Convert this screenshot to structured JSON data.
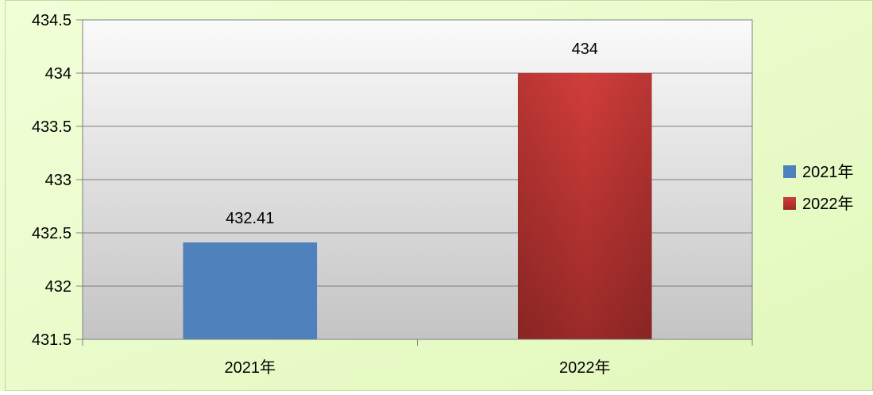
{
  "chart_data": {
    "type": "bar",
    "categories": [
      "2021年",
      "2022年"
    ],
    "series": [
      {
        "name": "2021年",
        "values": [
          432.41,
          null
        ],
        "color": "#4f81bd"
      },
      {
        "name": "2022年",
        "values": [
          null,
          434
        ],
        "color": "#c0504d"
      }
    ],
    "data_labels": [
      "432.41",
      "434"
    ],
    "ylim": [
      431.5,
      434.5
    ],
    "yticks": [
      "434.5",
      "434",
      "433.5",
      "433",
      "432.5",
      "432",
      "431.5"
    ],
    "title": "",
    "xlabel": "",
    "ylabel": "",
    "grid": true,
    "legend_position": "right"
  },
  "colors": {
    "background": "#eaffc8",
    "plot_gradient_top": "#fafafa",
    "plot_gradient_bottom": "#c4c4c4"
  }
}
